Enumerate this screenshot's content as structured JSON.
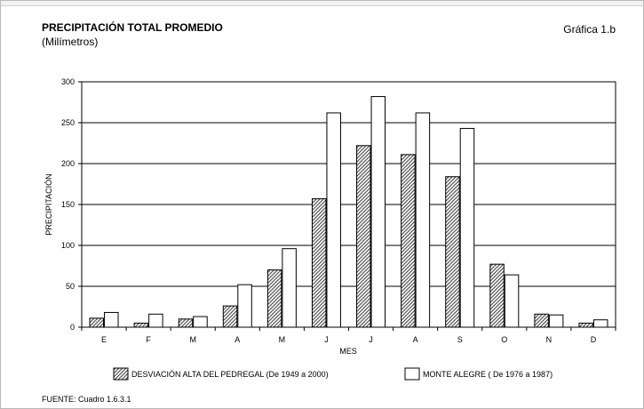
{
  "header": {
    "title": "PRECIPITACIÓN TOTAL PROMEDIO",
    "subtitle": "(Milímetros)",
    "graph_label": "Gráfica 1.b"
  },
  "footer": {
    "source": "FUENTE: Cuadro 1.6.3.1"
  },
  "colors": {
    "series1_hatch": "#555555",
    "series2_fill": "#ffffff",
    "grid": "#000000"
  },
  "chart_data": {
    "type": "bar",
    "title": "PRECIPITACIÓN TOTAL PROMEDIO",
    "subtitle": "(Milímetros)",
    "xlabel": "MES",
    "ylabel": "PRECIPITACIÓN",
    "ylim": [
      0,
      300
    ],
    "yticks": [
      0,
      50,
      100,
      150,
      200,
      250,
      300
    ],
    "grid": true,
    "legend_position": "bottom",
    "categories": [
      "E",
      "F",
      "M",
      "A",
      "M",
      "J",
      "J",
      "A",
      "S",
      "O",
      "N",
      "D"
    ],
    "series": [
      {
        "name": "DESVIACIÓN ALTA DEL PEDREGAL (De 1949 a 2000)",
        "pattern": "hatched",
        "values": [
          11,
          5,
          10,
          26,
          70,
          157,
          222,
          211,
          184,
          77,
          16,
          5
        ]
      },
      {
        "name": "MONTE ALEGRE ( De 1976 a 1987)",
        "pattern": "white",
        "values": [
          18,
          16,
          13,
          52,
          96,
          262,
          282,
          262,
          243,
          64,
          15,
          9
        ]
      }
    ]
  }
}
